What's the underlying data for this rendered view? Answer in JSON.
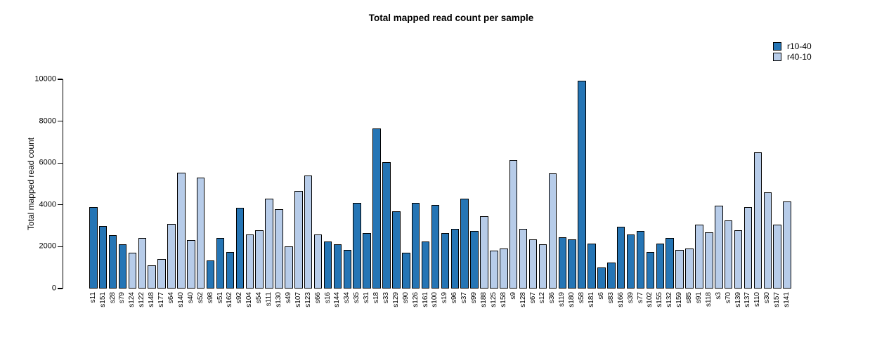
{
  "chart_data": {
    "type": "bar",
    "title": "Total mapped read count per sample",
    "xlabel": "",
    "ylabel": "Total mapped read count",
    "ylim": [
      0,
      10000
    ],
    "yticks": [
      0,
      2000,
      4000,
      6000,
      8000,
      10000
    ],
    "grid": false,
    "legend_position": "top-right",
    "bar_border_color": "#000000",
    "series_colors": {
      "r10-40": "#2575B5",
      "r40-10": "#B7CCE9"
    },
    "categories": [
      "s11",
      "s151",
      "s28",
      "s79",
      "s124",
      "s122",
      "s148",
      "s177",
      "s64",
      "s140",
      "s40",
      "s52",
      "s98",
      "s51",
      "s162",
      "s92",
      "s104",
      "s54",
      "s111",
      "s130",
      "s49",
      "s107",
      "s123",
      "s66",
      "s16",
      "s144",
      "s34",
      "s35",
      "s31",
      "s18",
      "s33",
      "s129",
      "s90",
      "s126",
      "s161",
      "s100",
      "s19",
      "s96",
      "s37",
      "s99",
      "s188",
      "s125",
      "s158",
      "s9",
      "s128",
      "s67",
      "s12",
      "s36",
      "s119",
      "s180",
      "s58",
      "s181",
      "s6",
      "s83",
      "s166",
      "s39",
      "s77",
      "s102",
      "s155",
      "s132",
      "s159",
      "s85",
      "s91",
      "s118",
      "s3",
      "s70",
      "s139",
      "s137",
      "s110",
      "s30",
      "s157",
      "s141"
    ],
    "values": [
      3900,
      3000,
      2550,
      2100,
      1700,
      2400,
      1100,
      1400,
      3100,
      5550,
      2300,
      5300,
      1350,
      2400,
      1750,
      3850,
      2600,
      2800,
      4300,
      3800,
      2000,
      4650,
      5400,
      2600,
      2250,
      2100,
      1850,
      4100,
      2650,
      7650,
      6050,
      3700,
      1700,
      4100,
      2250,
      4000,
      2650,
      2850,
      4300,
      2750,
      3450,
      1800,
      1900,
      6150,
      2850,
      2350,
      2100,
      5500,
      2450,
      2350,
      9950,
      2150,
      1000,
      1250,
      2950,
      2600,
      2750,
      1750,
      2150,
      2400,
      1850,
      1900,
      3050,
      2700,
      3950,
      3250,
      2800,
      3900,
      6500,
      4600,
      3050,
      4150
    ],
    "groups": [
      "r10-40",
      "r10-40",
      "r10-40",
      "r10-40",
      "r40-10",
      "r40-10",
      "r40-10",
      "r40-10",
      "r40-10",
      "r40-10",
      "r40-10",
      "r40-10",
      "r10-40",
      "r10-40",
      "r10-40",
      "r10-40",
      "r40-10",
      "r40-10",
      "r40-10",
      "r40-10",
      "r40-10",
      "r40-10",
      "r40-10",
      "r40-10",
      "r10-40",
      "r10-40",
      "r10-40",
      "r10-40",
      "r10-40",
      "r10-40",
      "r10-40",
      "r10-40",
      "r10-40",
      "r10-40",
      "r10-40",
      "r10-40",
      "r10-40",
      "r10-40",
      "r10-40",
      "r10-40",
      "r40-10",
      "r40-10",
      "r40-10",
      "r40-10",
      "r40-10",
      "r40-10",
      "r40-10",
      "r40-10",
      "r10-40",
      "r10-40",
      "r10-40",
      "r10-40",
      "r10-40",
      "r10-40",
      "r10-40",
      "r10-40",
      "r10-40",
      "r10-40",
      "r10-40",
      "r10-40",
      "r40-10",
      "r40-10",
      "r40-10",
      "r40-10",
      "r40-10",
      "r40-10",
      "r40-10",
      "r40-10",
      "r40-10",
      "r40-10",
      "r40-10",
      "r40-10"
    ]
  },
  "legend": [
    {
      "label": "r10-40",
      "color": "#2575B5"
    },
    {
      "label": "r40-10",
      "color": "#B7CCE9"
    }
  ]
}
